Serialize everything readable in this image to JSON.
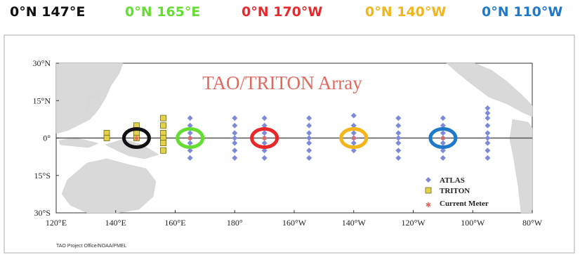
{
  "header_labels": [
    {
      "text": "0°N 147°E",
      "color": "#111111"
    },
    {
      "text": "0°N 165°E",
      "color": "#66dd33"
    },
    {
      "text": "0°N 170°W",
      "color": "#e8282a"
    },
    {
      "text": "0°N 140°W",
      "color": "#f2b51c"
    },
    {
      "text": "0°N 110°W",
      "color": "#1f78c8"
    }
  ],
  "map": {
    "title": "TAO/TRITON Array",
    "title_color": "#e06a5e",
    "lat_ticks": [
      "30°N",
      "15°N",
      "0°",
      "15°S",
      "30°S"
    ],
    "lon_ticks": [
      "120°E",
      "140°E",
      "160°E",
      "180°",
      "160°W",
      "140°W",
      "120°W",
      "100°W",
      "80°W"
    ],
    "credit": "TAO Project Office/NOAA/PMEL",
    "legend": [
      {
        "label": "ATLAS",
        "symbol": "diamond",
        "color": "#7d8ad8"
      },
      {
        "label": "TRITON",
        "symbol": "square",
        "color": "#e3d14a"
      },
      {
        "label": "Current Meter",
        "symbol": "star",
        "color": "#e06a5e"
      }
    ],
    "moorings": {
      "triton": [
        {
          "lon": 137,
          "lats": [
            2,
            0
          ]
        },
        {
          "lon": 147,
          "lats": [
            5,
            2,
            0
          ]
        },
        {
          "lon": 156,
          "lats": [
            8,
            5,
            2,
            0,
            -2,
            -5
          ]
        }
      ],
      "atlas": [
        {
          "lon": 165,
          "lats": [
            8,
            5,
            2,
            0,
            -2,
            -5,
            -8
          ]
        },
        {
          "lon": 180,
          "lats": [
            8,
            5,
            2,
            0,
            -2,
            -5,
            -8
          ]
        },
        {
          "lon": 190,
          "lats": [
            8,
            5,
            2,
            0,
            -2,
            -5,
            -8
          ]
        },
        {
          "lon": 205,
          "lats": [
            8,
            5,
            2,
            0,
            -2,
            -5,
            -8
          ]
        },
        {
          "lon": 220,
          "lats": [
            9,
            5,
            2,
            0,
            -2,
            -5
          ]
        },
        {
          "lon": 235,
          "lats": [
            8,
            5,
            2,
            0,
            -2,
            -5,
            -8
          ]
        },
        {
          "lon": 250,
          "lats": [
            8,
            5,
            2,
            0,
            -2,
            -5,
            -8
          ]
        },
        {
          "lon": 265,
          "lats": [
            12,
            10,
            8,
            5,
            2,
            0,
            -2,
            -5,
            -8
          ]
        }
      ],
      "current_meters": [
        {
          "lon": 147,
          "lat": 0
        },
        {
          "lon": 165,
          "lat": 0
        },
        {
          "lon": 190,
          "lat": 0
        },
        {
          "lon": 220,
          "lat": 0
        },
        {
          "lon": 250,
          "lat": 0
        }
      ]
    },
    "highlights": [
      {
        "lon": 147,
        "lat": 0,
        "color": "#111111"
      },
      {
        "lon": 165,
        "lat": 0,
        "color": "#66dd33"
      },
      {
        "lon": 190,
        "lat": 0,
        "color": "#e8282a"
      },
      {
        "lon": 220,
        "lat": 0,
        "color": "#f2b51c"
      },
      {
        "lon": 250,
        "lat": 0,
        "color": "#1f78c8"
      }
    ]
  }
}
